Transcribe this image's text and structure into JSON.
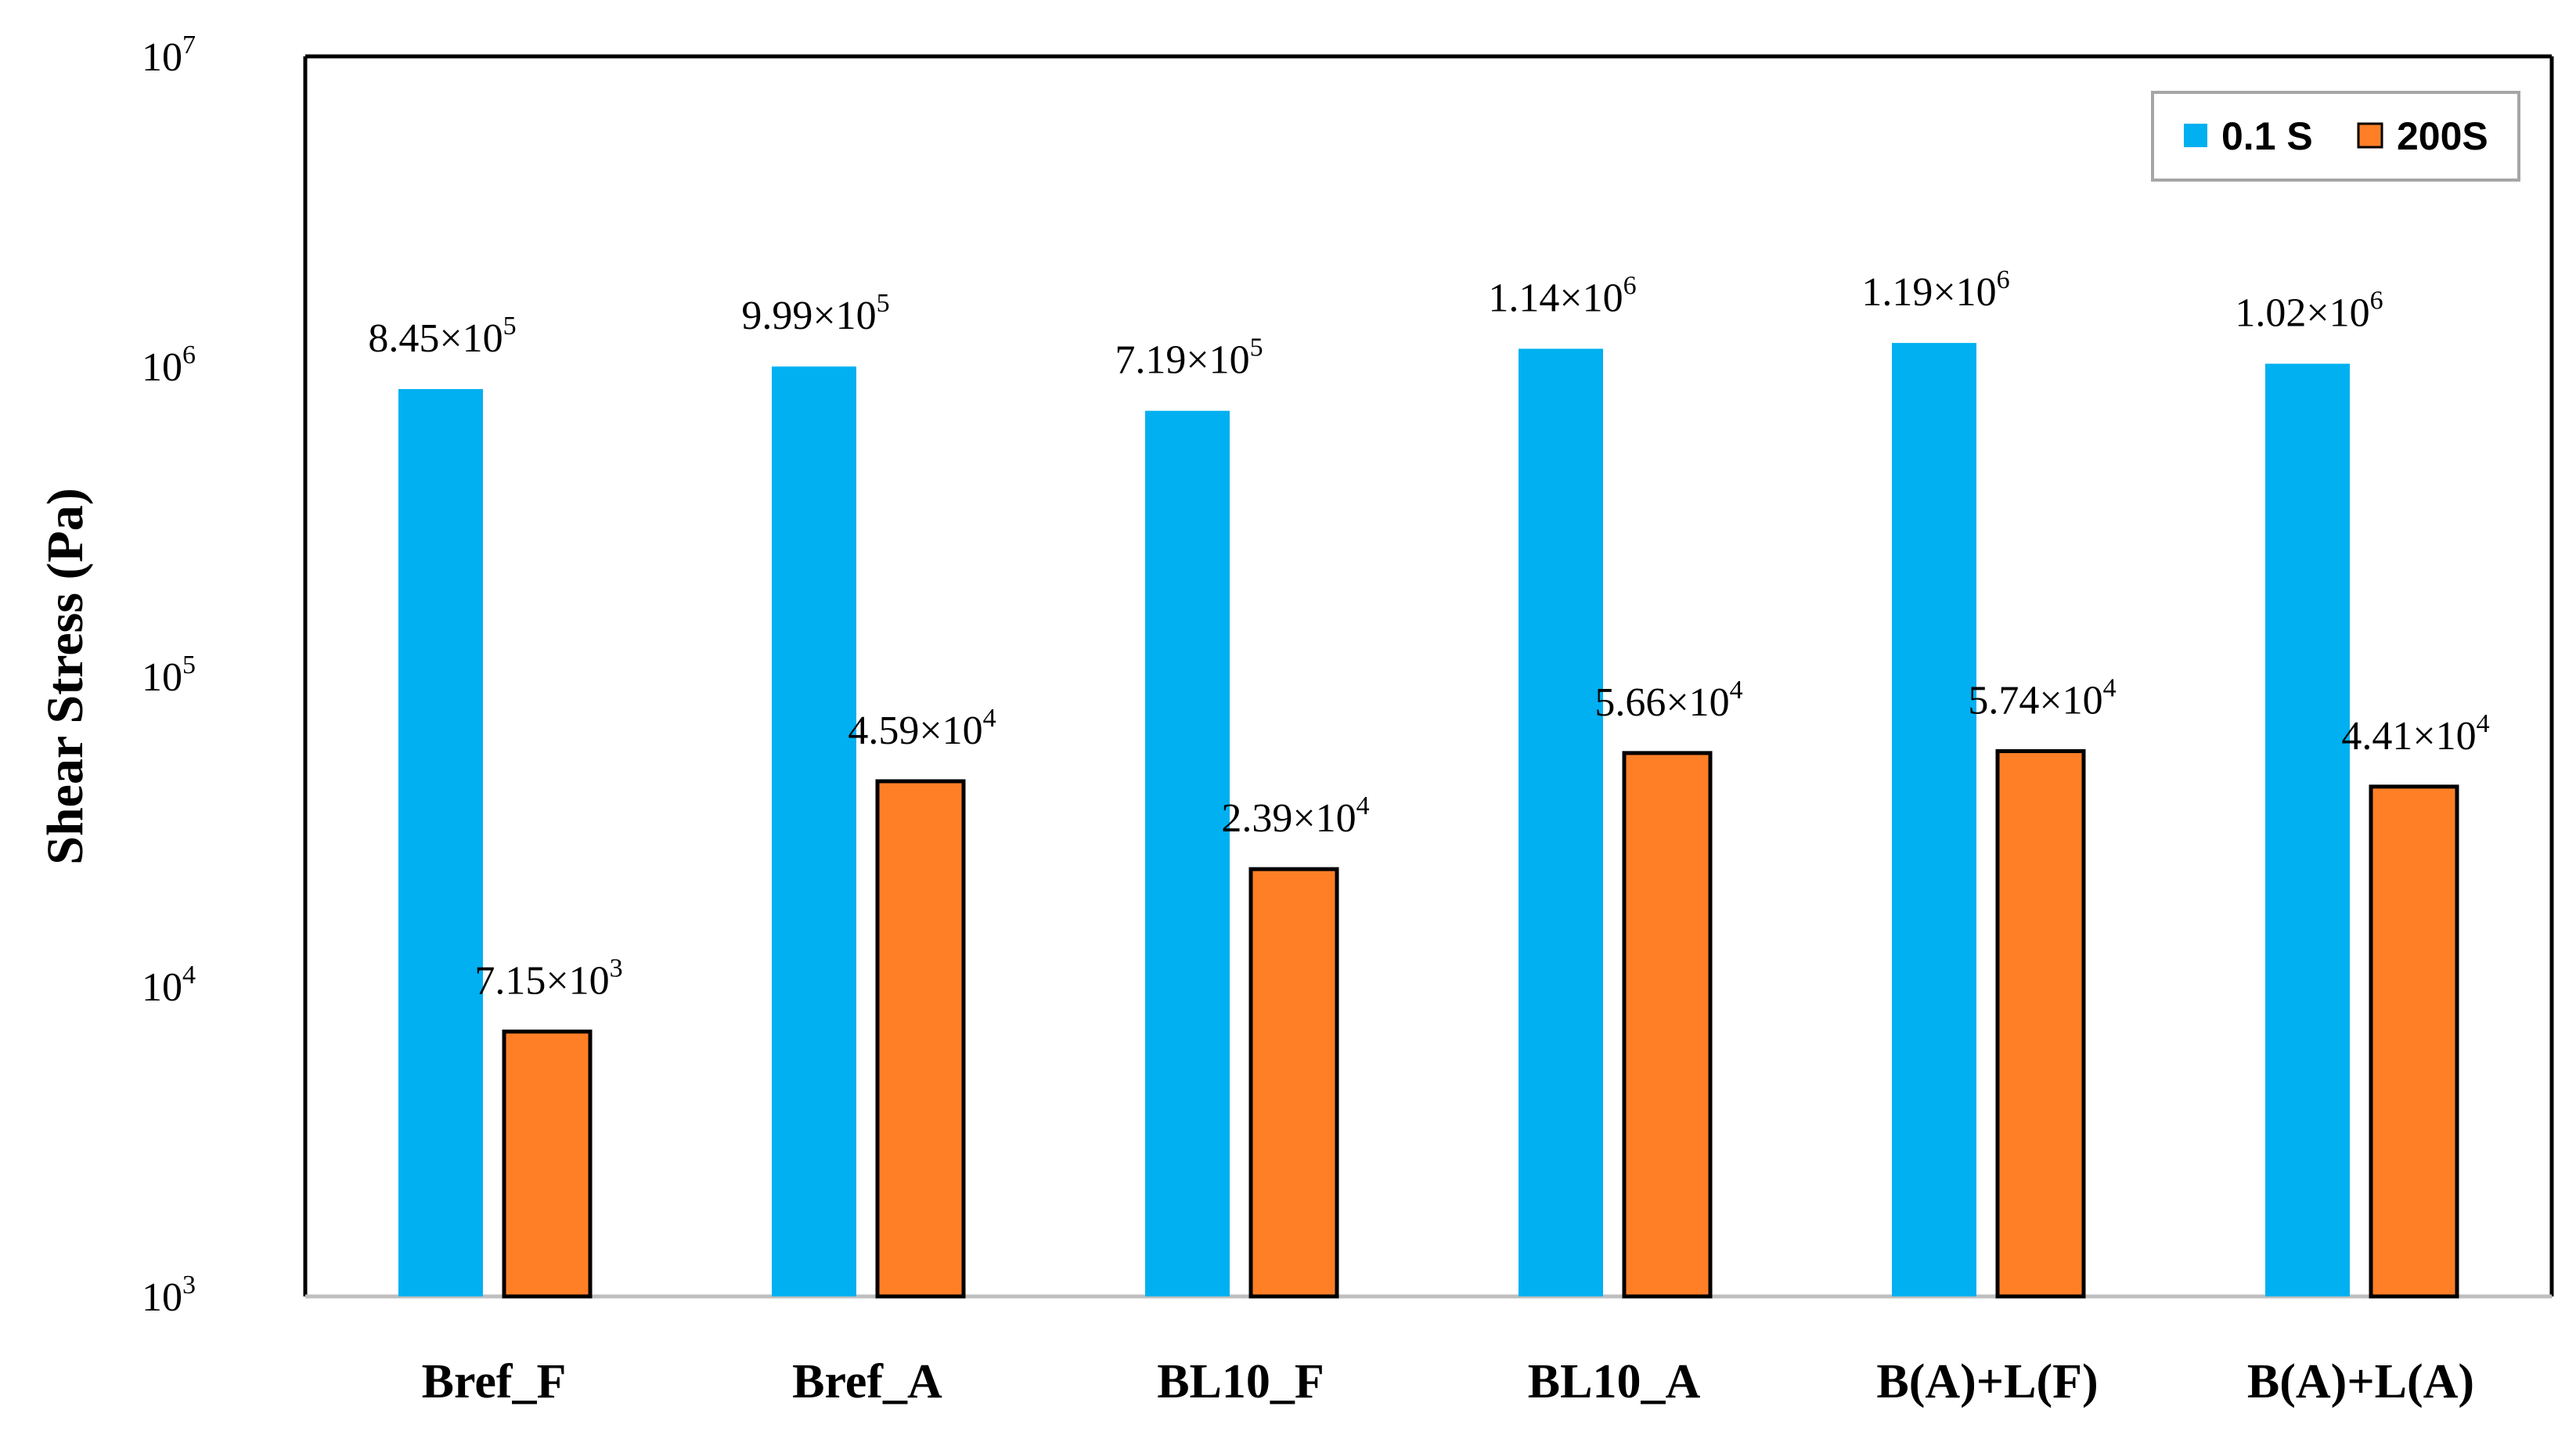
{
  "chart_data": {
    "type": "bar",
    "title": "",
    "xlabel": "",
    "ylabel": "Shear Stress (Pa)",
    "yscale": "log",
    "ylim": [
      1000,
      10000000
    ],
    "ytick_labels": [
      {
        "base": "10",
        "exp": "3",
        "value": 1000
      },
      {
        "base": "10",
        "exp": "4",
        "value": 10000
      },
      {
        "base": "10",
        "exp": "5",
        "value": 100000
      },
      {
        "base": "10",
        "exp": "6",
        "value": 1000000
      },
      {
        "base": "10",
        "exp": "7",
        "value": 10000000
      }
    ],
    "categories": [
      "Bref_F",
      "Bref_A",
      "BL10_F",
      "BL10_A",
      "B(A)+L(F)",
      "B(A)+L(A)"
    ],
    "legend_position": "top-right",
    "series": [
      {
        "name": "0.1 S",
        "color": "#00B0F0",
        "values": [
          845000,
          999000,
          719000,
          1140000,
          1190000,
          1020000
        ],
        "labels": [
          {
            "mantissa": "8.45×10",
            "exp": "5"
          },
          {
            "mantissa": "9.99×10",
            "exp": "5"
          },
          {
            "mantissa": "7.19×10",
            "exp": "5"
          },
          {
            "mantissa": "1.14×10",
            "exp": "6"
          },
          {
            "mantissa": "1.19×10",
            "exp": "6"
          },
          {
            "mantissa": "1.02×10",
            "exp": "6"
          }
        ]
      },
      {
        "name": "200S",
        "color": "#FF7F27",
        "values": [
          7150,
          45900,
          23900,
          56600,
          57400,
          44100
        ],
        "labels": [
          {
            "mantissa": "7.15×10",
            "exp": "3"
          },
          {
            "mantissa": "4.59×10",
            "exp": "4"
          },
          {
            "mantissa": "2.39×10",
            "exp": "4"
          },
          {
            "mantissa": "5.66×10",
            "exp": "4"
          },
          {
            "mantissa": "5.74×10",
            "exp": "4"
          },
          {
            "mantissa": "4.41×10",
            "exp": "4"
          }
        ]
      }
    ]
  }
}
